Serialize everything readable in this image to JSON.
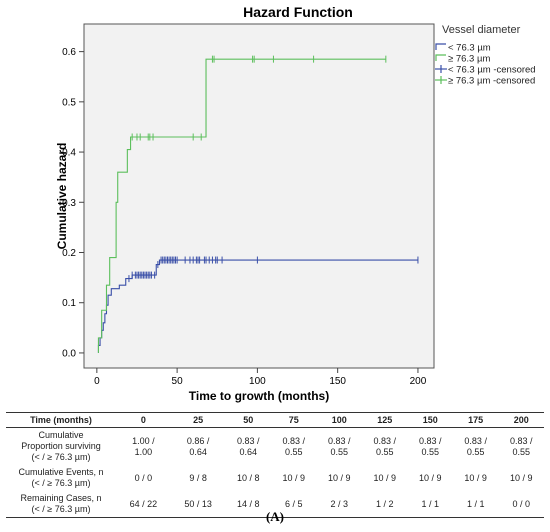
{
  "chart_data": {
    "type": "line",
    "title": "Hazard Function",
    "xlabel": "Time to growth (months)",
    "ylabel": "Cumulative hazard",
    "xlim": [
      -8,
      210
    ],
    "ylim": [
      -0.03,
      0.655
    ],
    "x_ticks": [
      0,
      50,
      100,
      150,
      200
    ],
    "y_ticks": [
      0.0,
      0.1,
      0.2,
      0.3,
      0.4,
      0.5,
      0.6
    ],
    "x_tick_labels": [
      "0",
      "50",
      "100",
      "150",
      "200"
    ],
    "y_tick_labels": [
      "0.0",
      "0.1",
      "0.2",
      "0.3",
      "0.4",
      "0.5",
      "0.6"
    ],
    "grid": false,
    "legend": {
      "title": "Vessel diameter",
      "placement": "top-right-outside",
      "entries": [
        "< 76.3 µm",
        "≥ 76.3 µm",
        "< 76.3 µm -censored",
        "≥ 76.3 µm -censored"
      ]
    },
    "series": [
      {
        "name": "< 76.3 µm",
        "color": "#3a4fa8",
        "step_points": [
          [
            1,
            0
          ],
          [
            1,
            0.015
          ],
          [
            2,
            0.015
          ],
          [
            2,
            0.03
          ],
          [
            3,
            0.03
          ],
          [
            3,
            0.045
          ],
          [
            4,
            0.045
          ],
          [
            4,
            0.06
          ],
          [
            5,
            0.06
          ],
          [
            5,
            0.078
          ],
          [
            6,
            0.078
          ],
          [
            6,
            0.095
          ],
          [
            7,
            0.095
          ],
          [
            7,
            0.115
          ],
          [
            9,
            0.115
          ],
          [
            9,
            0.128
          ],
          [
            14,
            0.128
          ],
          [
            14,
            0.135
          ],
          [
            18,
            0.135
          ],
          [
            18,
            0.148
          ],
          [
            22,
            0.148
          ],
          [
            22,
            0.155
          ],
          [
            37,
            0.155
          ],
          [
            37,
            0.176
          ],
          [
            39,
            0.176
          ],
          [
            39,
            0.185
          ],
          [
            200,
            0.185
          ]
        ],
        "censored_x": [
          20,
          22,
          24,
          25,
          26,
          27,
          28,
          29,
          30,
          31,
          32,
          33,
          34,
          36,
          38,
          40,
          41,
          42,
          43,
          44,
          45,
          46,
          47,
          48,
          49,
          50,
          55,
          58,
          60,
          62,
          63,
          64,
          67,
          68,
          70,
          72,
          74,
          75,
          78,
          100,
          200
        ]
      },
      {
        "name": "≥ 76.3 µm",
        "color": "#5cbf5c",
        "step_points": [
          [
            1,
            0
          ],
          [
            1,
            0.03
          ],
          [
            3,
            0.03
          ],
          [
            3,
            0.085
          ],
          [
            6,
            0.085
          ],
          [
            6,
            0.135
          ],
          [
            8,
            0.135
          ],
          [
            8,
            0.19
          ],
          [
            12,
            0.19
          ],
          [
            12,
            0.3
          ],
          [
            13,
            0.3
          ],
          [
            13,
            0.36
          ],
          [
            19,
            0.36
          ],
          [
            19,
            0.405
          ],
          [
            21,
            0.405
          ],
          [
            21,
            0.43
          ],
          [
            68,
            0.43
          ],
          [
            68,
            0.585
          ],
          [
            180,
            0.585
          ]
        ],
        "censored_x": [
          22,
          25,
          27,
          32,
          33,
          35,
          60,
          65,
          72,
          73,
          97,
          98,
          110,
          135,
          180
        ]
      }
    ]
  },
  "table": {
    "header": [
      "Time (months)",
      "0",
      "25",
      "50",
      "75",
      "100",
      "125",
      "150",
      "175",
      "200"
    ],
    "rows": [
      {
        "label": [
          "Cumulative",
          "Proportion surviving",
          "(< / ≥ 76.3 µm)"
        ],
        "cells": [
          [
            "1.00 /",
            "1.00"
          ],
          [
            "0.86 /",
            "0.64"
          ],
          [
            "0.83 /",
            "0.64"
          ],
          [
            "0.83 /",
            "0.55"
          ],
          [
            "0.83 /",
            "0.55"
          ],
          [
            "0.83 /",
            "0.55"
          ],
          [
            "0.83 /",
            "0.55"
          ],
          [
            "0.83 /",
            "0.55"
          ],
          [
            "0.83 /",
            "0.55"
          ]
        ]
      },
      {
        "label": [
          "Cumulative Events, n",
          "(< / ≥ 76.3 µm)"
        ],
        "cells": [
          [
            "0 / 0"
          ],
          [
            "9 / 8"
          ],
          [
            "10 / 8"
          ],
          [
            "10 / 9"
          ],
          [
            "10 / 9"
          ],
          [
            "10 / 9"
          ],
          [
            "10 / 9"
          ],
          [
            "10 / 9"
          ],
          [
            "10 / 9"
          ]
        ]
      },
      {
        "label": [
          "Remaining Cases, n",
          "(< / ≥ 76.3 µm)"
        ],
        "cells": [
          [
            "64 / 22"
          ],
          [
            "50 / 13"
          ],
          [
            "14 / 8"
          ],
          [
            "6 / 5"
          ],
          [
            "2 / 3"
          ],
          [
            "1 / 2"
          ],
          [
            "1 / 1"
          ],
          [
            "1 / 1"
          ],
          [
            "0 / 0"
          ]
        ]
      }
    ]
  },
  "figure_label": "(A)"
}
